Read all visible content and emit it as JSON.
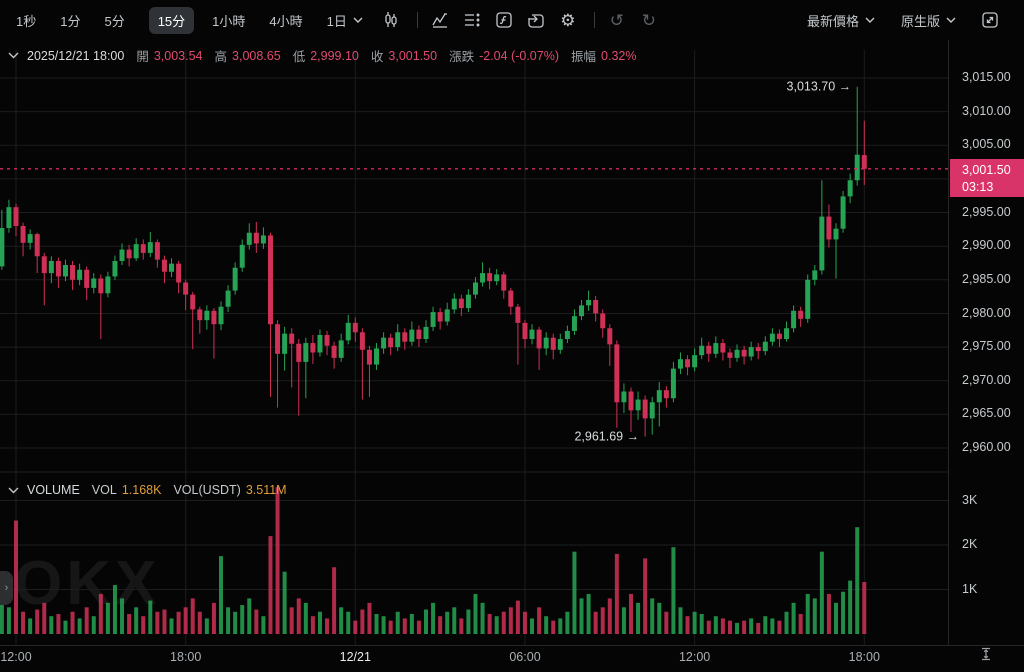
{
  "toolbar": {
    "timeframes": [
      "1秒",
      "1分",
      "5分",
      "15分",
      "1小時",
      "4小時"
    ],
    "interval_dropdown": "1日",
    "price_mode": "最新價格",
    "version": "原生版",
    "icons": [
      "candlestick-style-icon",
      "indicators-icon",
      "legend-list-icon",
      "formula-icon",
      "replay-icon",
      "settings-gear-icon",
      "undo-icon",
      "redo-icon",
      "fullscreen-icon"
    ]
  },
  "info_bar": {
    "datetime": "2025/12/21 18:00",
    "open_label": "開",
    "open": "3,003.54",
    "high_label": "高",
    "high": "3,008.65",
    "low_label": "低",
    "low": "2,999.10",
    "close_label": "收",
    "close": "3,001.50",
    "change_label": "漲跌",
    "change": "-2.04 (-0.07%)",
    "amplitude_label": "振幅",
    "amplitude": "0.32%"
  },
  "volume_header": {
    "title": "VOLUME",
    "vol_label": "VOL",
    "vol": "1.168K",
    "vol_usdt_label": "VOL(USDT)",
    "vol_usdt": "3.511M"
  },
  "watermark": "OKX",
  "colors": {
    "up": "#27a355",
    "down": "#cf3157",
    "badge": "#d9346a",
    "last_price_line": "#d42a5e",
    "value_pink": "#e14b70",
    "orange": "#de9e3c",
    "grid": "#1b1d1e"
  },
  "chart_data": {
    "type": "candlestick",
    "interval": "15m",
    "date_shown": "2025/12/21",
    "price_ticks": [
      {
        "label": "3,015.00",
        "price": 3015
      },
      {
        "label": "3,010.00",
        "price": 3010
      },
      {
        "label": "3,005.00",
        "price": 3005
      },
      {
        "label": "2,995.00",
        "price": 2995
      },
      {
        "label": "2,990.00",
        "price": 2990
      },
      {
        "label": "2,985.00",
        "price": 2985
      },
      {
        "label": "2,980.00",
        "price": 2980
      },
      {
        "label": "2,975.00",
        "price": 2975
      },
      {
        "label": "2,970.00",
        "price": 2970
      },
      {
        "label": "2,965.00",
        "price": 2965
      },
      {
        "label": "2,960.00",
        "price": 2960
      }
    ],
    "grid_prices": [
      3015,
      3010,
      3005,
      3000,
      2995,
      2990,
      2985,
      2980,
      2975,
      2970,
      2965,
      2960
    ],
    "ylim": [
      2957.5,
      3016.5
    ],
    "last_price": {
      "value": "3,001.50",
      "countdown": "03:13",
      "price": 3001.5
    },
    "annotations": {
      "high": {
        "label": "3,013.70 →",
        "index": 121,
        "price": 3013.7
      },
      "low": {
        "label": "2,961.69 →",
        "index": 91,
        "price": 2961.69
      }
    },
    "time_ticks": [
      {
        "label": "12:00",
        "index": 2,
        "emph": false
      },
      {
        "label": "18:00",
        "index": 26,
        "emph": false
      },
      {
        "label": "12/21",
        "index": 50,
        "emph": true
      },
      {
        "label": "06:00",
        "index": 74,
        "emph": false
      },
      {
        "label": "12:00",
        "index": 98,
        "emph": false
      },
      {
        "label": "18:00",
        "index": 122,
        "emph": false
      }
    ],
    "volume_ticks": [
      {
        "label": "3K",
        "v": 3
      },
      {
        "label": "2K",
        "v": 2
      },
      {
        "label": "1K",
        "v": 1
      }
    ],
    "candles": [
      [
        2987.0,
        2995.4,
        2986.5,
        2992.7
      ],
      [
        2992.7,
        2996.9,
        2992.0,
        2995.8
      ],
      [
        2995.8,
        2996.3,
        2991.5,
        2993.0
      ],
      [
        2993.0,
        2993.5,
        2988.5,
        2990.5
      ],
      [
        2990.5,
        2992.5,
        2989.5,
        2991.8
      ],
      [
        2991.8,
        2992.0,
        2986.0,
        2988.5
      ],
      [
        2988.5,
        2989.0,
        2981.2,
        2986.0
      ],
      [
        2986.0,
        2988.5,
        2984.5,
        2987.8
      ],
      [
        2987.8,
        2988.3,
        2983.8,
        2985.5
      ],
      [
        2985.5,
        2988.0,
        2984.8,
        2987.2
      ],
      [
        2987.2,
        2987.8,
        2983.5,
        2985.0
      ],
      [
        2985.0,
        2987.4,
        2984.2,
        2986.5
      ],
      [
        2986.5,
        2987.0,
        2982.0,
        2983.8
      ],
      [
        2983.8,
        2986.0,
        2983.0,
        2985.2
      ],
      [
        2985.2,
        2985.8,
        2976.2,
        2983.0
      ],
      [
        2983.0,
        2986.2,
        2982.4,
        2985.5
      ],
      [
        2985.5,
        2988.6,
        2985.0,
        2987.8
      ],
      [
        2987.8,
        2990.4,
        2987.2,
        2989.5
      ],
      [
        2989.5,
        2990.2,
        2987.0,
        2988.2
      ],
      [
        2988.2,
        2991.2,
        2987.8,
        2990.3
      ],
      [
        2990.3,
        2991.0,
        2988.0,
        2989.0
      ],
      [
        2989.0,
        2992.1,
        2988.4,
        2990.6
      ],
      [
        2990.6,
        2991.0,
        2986.8,
        2988.0
      ],
      [
        2988.0,
        2988.6,
        2984.5,
        2986.2
      ],
      [
        2986.2,
        2988.2,
        2985.4,
        2987.4
      ],
      [
        2987.4,
        2987.8,
        2983.0,
        2984.6
      ],
      [
        2984.6,
        2985.0,
        2980.5,
        2982.8
      ],
      [
        2982.8,
        2983.2,
        2974.7,
        2980.6
      ],
      [
        2980.6,
        2981.0,
        2977.0,
        2979.0
      ],
      [
        2979.0,
        2981.2,
        2977.6,
        2980.4
      ],
      [
        2980.4,
        2980.8,
        2973.3,
        2978.4
      ],
      [
        2978.4,
        2981.8,
        2977.5,
        2981.0
      ],
      [
        2981.0,
        2984.2,
        2980.2,
        2983.4
      ],
      [
        2983.4,
        2987.6,
        2982.8,
        2986.8
      ],
      [
        2986.8,
        2991.0,
        2986.2,
        2990.2
      ],
      [
        2990.2,
        2993.4,
        2989.5,
        2992.0
      ],
      [
        2992.0,
        2993.6,
        2989.0,
        2990.4
      ],
      [
        2990.4,
        2992.8,
        2989.6,
        2991.6
      ],
      [
        2991.6,
        2992.0,
        2967.6,
        2978.4
      ],
      [
        2978.4,
        2979.0,
        2966.0,
        2974.0
      ],
      [
        2974.0,
        2978.0,
        2971.5,
        2977.0
      ],
      [
        2977.0,
        2977.8,
        2969.0,
        2975.5
      ],
      [
        2975.5,
        2976.2,
        2964.8,
        2972.8
      ],
      [
        2972.8,
        2976.4,
        2967.4,
        2975.6
      ],
      [
        2975.6,
        2976.8,
        2972.5,
        2974.2
      ],
      [
        2974.2,
        2977.6,
        2973.6,
        2976.8
      ],
      [
        2976.8,
        2977.4,
        2973.8,
        2975.2
      ],
      [
        2975.2,
        2975.8,
        2971.8,
        2973.4
      ],
      [
        2973.4,
        2977.0,
        2972.8,
        2976.0
      ],
      [
        2976.0,
        2979.8,
        2975.4,
        2978.6
      ],
      [
        2978.6,
        2979.4,
        2975.8,
        2977.2
      ],
      [
        2977.2,
        2977.8,
        2967.2,
        2974.6
      ],
      [
        2974.6,
        2975.2,
        2967.6,
        2972.4
      ],
      [
        2972.4,
        2975.6,
        2971.6,
        2974.8
      ],
      [
        2974.8,
        2977.2,
        2974.0,
        2976.4
      ],
      [
        2976.4,
        2977.0,
        2973.8,
        2975.0
      ],
      [
        2975.0,
        2978.4,
        2974.4,
        2977.2
      ],
      [
        2977.2,
        2977.8,
        2974.6,
        2975.8
      ],
      [
        2975.8,
        2978.8,
        2975.2,
        2977.6
      ],
      [
        2977.6,
        2978.2,
        2975.0,
        2976.2
      ],
      [
        2976.2,
        2979.0,
        2975.6,
        2978.0
      ],
      [
        2978.0,
        2981.0,
        2977.4,
        2980.2
      ],
      [
        2980.2,
        2980.8,
        2977.6,
        2978.8
      ],
      [
        2978.8,
        2981.6,
        2978.2,
        2980.6
      ],
      [
        2980.6,
        2983.0,
        2980.0,
        2982.2
      ],
      [
        2982.2,
        2982.8,
        2979.6,
        2980.8
      ],
      [
        2980.8,
        2983.6,
        2980.2,
        2982.8
      ],
      [
        2982.8,
        2985.4,
        2982.2,
        2984.6
      ],
      [
        2984.6,
        2987.6,
        2984.0,
        2986.0
      ],
      [
        2986.0,
        2986.8,
        2983.6,
        2984.8
      ],
      [
        2984.8,
        2986.6,
        2984.2,
        2985.8
      ],
      [
        2985.8,
        2986.2,
        2982.2,
        2983.4
      ],
      [
        2983.4,
        2983.8,
        2979.8,
        2981.0
      ],
      [
        2981.0,
        2981.4,
        2972.4,
        2978.6
      ],
      [
        2978.6,
        2979.0,
        2974.8,
        2976.2
      ],
      [
        2976.2,
        2978.4,
        2975.4,
        2977.6
      ],
      [
        2977.6,
        2978.0,
        2971.6,
        2974.8
      ],
      [
        2974.8,
        2977.2,
        2973.8,
        2976.4
      ],
      [
        2976.4,
        2977.0,
        2973.2,
        2974.6
      ],
      [
        2974.6,
        2977.0,
        2974.0,
        2976.2
      ],
      [
        2976.2,
        2978.2,
        2975.6,
        2977.4
      ],
      [
        2977.4,
        2980.6,
        2976.8,
        2979.6
      ],
      [
        2979.6,
        2982.0,
        2979.0,
        2981.2
      ],
      [
        2981.2,
        2983.4,
        2980.4,
        2982.0
      ],
      [
        2982.0,
        2982.6,
        2978.8,
        2980.0
      ],
      [
        2980.0,
        2980.6,
        2976.4,
        2977.8
      ],
      [
        2977.8,
        2978.4,
        2972.2,
        2975.4
      ],
      [
        2975.4,
        2976.0,
        2963.0,
        2966.8
      ],
      [
        2966.8,
        2969.6,
        2965.2,
        2968.4
      ],
      [
        2968.4,
        2969.0,
        2962.4,
        2965.6
      ],
      [
        2965.6,
        2968.4,
        2964.2,
        2967.2
      ],
      [
        2967.2,
        2967.8,
        2961.69,
        2964.4
      ],
      [
        2964.4,
        2967.6,
        2962.0,
        2966.8
      ],
      [
        2966.8,
        2969.8,
        2963.2,
        2968.6
      ],
      [
        2968.6,
        2969.2,
        2966.0,
        2967.4
      ],
      [
        2967.4,
        2972.8,
        2966.8,
        2971.8
      ],
      [
        2971.8,
        2974.2,
        2971.0,
        2973.2
      ],
      [
        2973.2,
        2973.8,
        2970.8,
        2972.0
      ],
      [
        2972.0,
        2974.8,
        2971.4,
        2973.8
      ],
      [
        2973.8,
        2976.4,
        2973.2,
        2975.2
      ],
      [
        2975.2,
        2975.8,
        2972.8,
        2974.0
      ],
      [
        2974.0,
        2976.6,
        2973.4,
        2975.6
      ],
      [
        2975.6,
        2976.2,
        2973.0,
        2974.2
      ],
      [
        2974.2,
        2974.8,
        2971.9,
        2973.4
      ],
      [
        2973.4,
        2975.4,
        2972.8,
        2974.6
      ],
      [
        2974.6,
        2975.2,
        2972.4,
        2973.6
      ],
      [
        2973.6,
        2975.8,
        2973.0,
        2975.0
      ],
      [
        2975.0,
        2975.6,
        2973.2,
        2974.4
      ],
      [
        2974.4,
        2976.6,
        2973.8,
        2975.8
      ],
      [
        2975.8,
        2977.8,
        2975.2,
        2977.0
      ],
      [
        2977.0,
        2977.6,
        2975.0,
        2976.2
      ],
      [
        2976.2,
        2978.8,
        2975.8,
        2977.8
      ],
      [
        2977.8,
        2981.2,
        2977.2,
        2980.4
      ],
      [
        2980.4,
        2981.0,
        2978.0,
        2979.2
      ],
      [
        2979.2,
        2985.8,
        2978.6,
        2985.0
      ],
      [
        2985.0,
        2987.2,
        2984.2,
        2986.4
      ],
      [
        2986.4,
        2999.8,
        2985.8,
        2994.4
      ],
      [
        2994.4,
        2996.2,
        2989.8,
        2991.0
      ],
      [
        2991.0,
        2993.4,
        2985.2,
        2992.6
      ],
      [
        2992.6,
        2998.2,
        2992.0,
        2997.4
      ],
      [
        2997.4,
        3000.8,
        2996.4,
        2999.8
      ],
      [
        2999.8,
        3013.7,
        2999.0,
        3003.6
      ],
      [
        3003.54,
        3008.65,
        2999.1,
        3001.5
      ]
    ],
    "volumes_k": [
      0.9,
      0.6,
      2.55,
      0.5,
      0.35,
      0.55,
      0.7,
      0.4,
      0.45,
      0.3,
      0.5,
      0.35,
      0.6,
      0.4,
      0.9,
      0.7,
      1.1,
      0.8,
      0.45,
      0.6,
      0.4,
      0.75,
      0.5,
      0.55,
      0.35,
      0.5,
      0.6,
      0.8,
      0.5,
      0.35,
      0.7,
      1.75,
      0.6,
      0.5,
      0.65,
      0.8,
      0.55,
      0.4,
      2.2,
      3.3,
      1.4,
      0.6,
      0.8,
      0.7,
      0.4,
      0.5,
      0.35,
      1.5,
      0.6,
      0.5,
      0.3,
      0.55,
      0.7,
      0.45,
      0.4,
      0.3,
      0.5,
      0.35,
      0.45,
      0.3,
      0.55,
      0.7,
      0.4,
      0.5,
      0.6,
      0.35,
      0.55,
      0.9,
      0.7,
      0.45,
      0.4,
      0.5,
      0.6,
      0.75,
      0.5,
      0.35,
      0.6,
      0.4,
      0.3,
      0.35,
      0.5,
      1.85,
      0.8,
      0.9,
      0.5,
      0.6,
      0.8,
      1.8,
      0.6,
      0.9,
      0.7,
      1.7,
      0.8,
      0.7,
      0.5,
      1.95,
      0.6,
      0.4,
      0.5,
      0.45,
      0.3,
      0.4,
      0.35,
      0.3,
      0.25,
      0.3,
      0.35,
      0.25,
      0.4,
      0.35,
      0.3,
      0.5,
      0.7,
      0.45,
      0.9,
      0.8,
      1.85,
      0.9,
      0.7,
      0.95,
      1.2,
      2.4,
      1.168
    ]
  }
}
